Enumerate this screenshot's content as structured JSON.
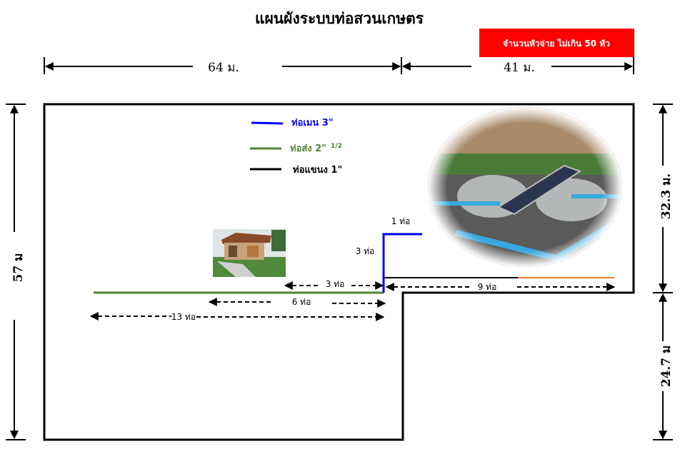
{
  "title": "แผนผังระบบท่อสวนเกษตร",
  "notice": {
    "text": "จำนวนหัวจ่าย ไม่เกิน 50 หัว",
    "color": "#ff0000"
  },
  "dimensions": {
    "top_left": "64 ม.",
    "top_right": "41 ม.",
    "left": "57 ม",
    "right_upper": "32.3 ม.",
    "right_lower": "24.7 ม"
  },
  "legend": [
    {
      "label": "ท่อเมน 3\"",
      "color": "#0000ff"
    },
    {
      "label": "ท่อส่ง 2\"",
      "sup": "1/2",
      "color": "#538135"
    },
    {
      "label": "ท่อแขนง 1\"",
      "color": "#000000"
    }
  ],
  "pipe_labels": {
    "main_horizontal": "1 ท่อ",
    "main_vertical": "3 ท่อ",
    "left_short": "3 ท่อ",
    "right_branch": "9 ท่อ",
    "mid": "6 ท่อ",
    "long": "13 ท่อ"
  },
  "colors": {
    "orange_segment": "#ed7d31"
  },
  "images": {
    "house": "house-photo",
    "pond": "solar-aerator-pond-photo"
  }
}
